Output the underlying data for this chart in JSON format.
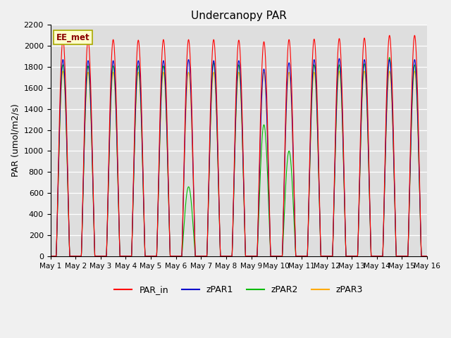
{
  "title": "Undercanopy PAR",
  "ylabel": "PAR (umol/m2/s)",
  "site_label": "EE_met",
  "ylim": [
    0,
    2200
  ],
  "yticks": [
    0,
    200,
    400,
    600,
    800,
    1000,
    1200,
    1400,
    1600,
    1800,
    2000,
    2200
  ],
  "background_color": "#dedede",
  "fig_facecolor": "#f0f0f0",
  "series_colors": {
    "PAR_in": "#ff0000",
    "zPAR1": "#0000cc",
    "zPAR2": "#00bb00",
    "zPAR3": "#ffaa00"
  },
  "n_days": 15,
  "timesteps_per_day": 288,
  "peak_PAR_in": [
    2060,
    2055,
    2060,
    2055,
    2060,
    2060,
    2060,
    2055,
    2040,
    2060,
    2065,
    2070,
    2075,
    2100,
    2100
  ],
  "peak_zPAR1": [
    1870,
    1860,
    1860,
    1860,
    1860,
    1870,
    1860,
    1860,
    1780,
    1840,
    1870,
    1880,
    1870,
    1870,
    1870
  ],
  "peak_zPAR2": [
    1820,
    1810,
    1810,
    1810,
    1810,
    660,
    1840,
    1820,
    1250,
    1000,
    1820,
    1820,
    1830,
    1890,
    1820
  ],
  "peak_zPAR3": [
    1760,
    1750,
    1750,
    1750,
    1750,
    1750,
    1750,
    1750,
    1750,
    1750,
    1750,
    1760,
    1760,
    1760,
    1760
  ]
}
